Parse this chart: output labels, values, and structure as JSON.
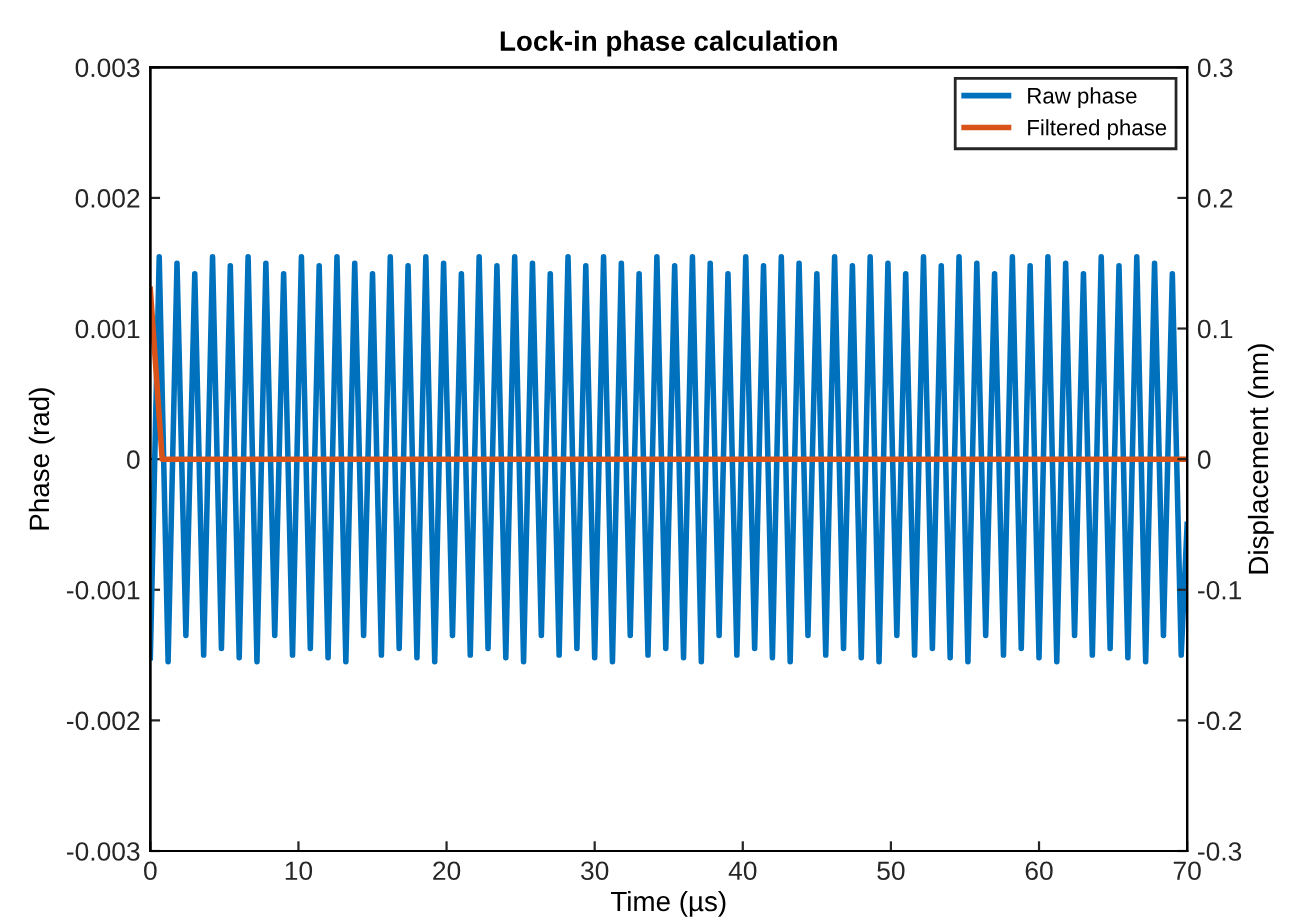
{
  "chart_data": {
    "type": "line",
    "title": "Lock-in phase calculation",
    "xlabel": "Time (µs)",
    "ylabel": "Phase (rad)",
    "y2label": "Displacement (nm)",
    "xlim": [
      0,
      70
    ],
    "xticks": [
      0,
      10,
      20,
      30,
      40,
      50,
      60,
      70
    ],
    "ylim": [
      -0.003,
      0.003
    ],
    "yticks": [
      -0.003,
      -0.002,
      -0.001,
      0,
      0.001,
      0.002,
      0.003
    ],
    "y2lim": [
      -0.3,
      0.3
    ],
    "y2ticks": [
      -0.3,
      -0.2,
      -0.1,
      0,
      0.1,
      0.2,
      0.3
    ],
    "grid": false,
    "legend": "top right",
    "series": [
      {
        "name": "Raw phase",
        "color": "#0072bd",
        "x": [
          0,
          0.6,
          1.2,
          1.8,
          2.4,
          3,
          3.6,
          4.2,
          4.8,
          5.4,
          6,
          6.6,
          7.2,
          7.8,
          8.4,
          9,
          9.6,
          10.2,
          10.8,
          11.4,
          12,
          12.6,
          13.2,
          13.8,
          14.4,
          15,
          15.6,
          16.2,
          16.8,
          17.4,
          18,
          18.6,
          19.2,
          19.8,
          20.4,
          21,
          21.6,
          22.2,
          22.8,
          23.4,
          24,
          24.6,
          25.2,
          25.8,
          26.4,
          27,
          27.6,
          28.2,
          28.8,
          29.4,
          30,
          30.6,
          31.2,
          31.8,
          32.4,
          33,
          33.6,
          34.2,
          34.8,
          35.4,
          36,
          36.6,
          37.2,
          37.8,
          38.4,
          39,
          39.6,
          40.2,
          40.8,
          41.4,
          42,
          42.6,
          43.2,
          43.8,
          44.4,
          45,
          45.6,
          46.2,
          46.8,
          47.4,
          48,
          48.6,
          49.2,
          49.8,
          50.4,
          51,
          51.6,
          52.2,
          52.8,
          53.4,
          54,
          54.6,
          55.2,
          55.8,
          56.4,
          57,
          57.6,
          58.2,
          58.8,
          59.4,
          60,
          60.6,
          61.2,
          61.8,
          62.4,
          63,
          63.6,
          64.2,
          64.8,
          65.4,
          66,
          66.6,
          67.2,
          67.8,
          68.4,
          69,
          69.6,
          70
        ],
        "values": [
          -0.00152,
          0.00155,
          -0.00155,
          0.0015,
          -0.00135,
          0.00142,
          -0.0015,
          0.00155,
          -0.00145,
          0.00148,
          -0.00152,
          0.00155,
          -0.00155,
          0.0015,
          -0.00135,
          0.00142,
          -0.0015,
          0.00155,
          -0.00145,
          0.00148,
          -0.00152,
          0.00155,
          -0.00155,
          0.0015,
          -0.00135,
          0.00142,
          -0.0015,
          0.00155,
          -0.00145,
          0.00148,
          -0.00152,
          0.00155,
          -0.00155,
          0.0015,
          -0.00135,
          0.00142,
          -0.0015,
          0.00155,
          -0.00145,
          0.00148,
          -0.00152,
          0.00155,
          -0.00155,
          0.0015,
          -0.00135,
          0.00142,
          -0.0015,
          0.00155,
          -0.00145,
          0.00148,
          -0.00152,
          0.00155,
          -0.00155,
          0.0015,
          -0.00135,
          0.00142,
          -0.0015,
          0.00155,
          -0.00145,
          0.00148,
          -0.00152,
          0.00155,
          -0.00155,
          0.0015,
          -0.00135,
          0.00142,
          -0.0015,
          0.00155,
          -0.00145,
          0.00148,
          -0.00152,
          0.00155,
          -0.00155,
          0.0015,
          -0.00135,
          0.00142,
          -0.0015,
          0.00155,
          -0.00145,
          0.00148,
          -0.00152,
          0.00155,
          -0.00155,
          0.0015,
          -0.00135,
          0.00142,
          -0.0015,
          0.00155,
          -0.00145,
          0.00148,
          -0.00152,
          0.00155,
          -0.00155,
          0.0015,
          -0.00135,
          0.00142,
          -0.0015,
          0.00155,
          -0.00145,
          0.00148,
          -0.00152,
          0.00155,
          -0.00155,
          0.0015,
          -0.00135,
          0.00142,
          -0.0015,
          0.00155,
          -0.00145,
          0.00148,
          -0.00152,
          0.00155,
          -0.00155,
          0.0015,
          -0.00135,
          0.00142,
          -0.0015,
          -0.0005
        ]
      },
      {
        "name": "Filtered phase",
        "color": "#d95319",
        "x": [
          0,
          0.8,
          70
        ],
        "values": [
          0.0013,
          0,
          0
        ]
      }
    ]
  }
}
